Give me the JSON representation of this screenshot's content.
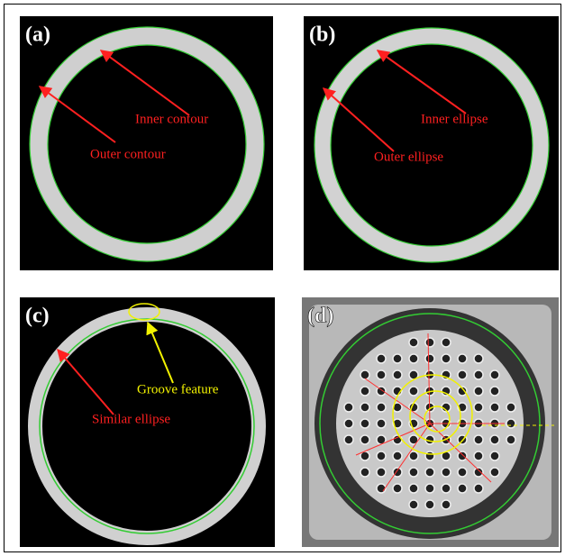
{
  "panels": [
    {
      "label": "(a)",
      "annotations": [
        "Inner contour",
        "Outer contour"
      ]
    },
    {
      "label": "(b)",
      "annotations": [
        "Inner ellipse",
        "Outer ellipse"
      ]
    },
    {
      "label": "(c)",
      "annotations": [
        "Groove feature",
        "Similar ellipse"
      ]
    },
    {
      "label": "(d)"
    }
  ]
}
